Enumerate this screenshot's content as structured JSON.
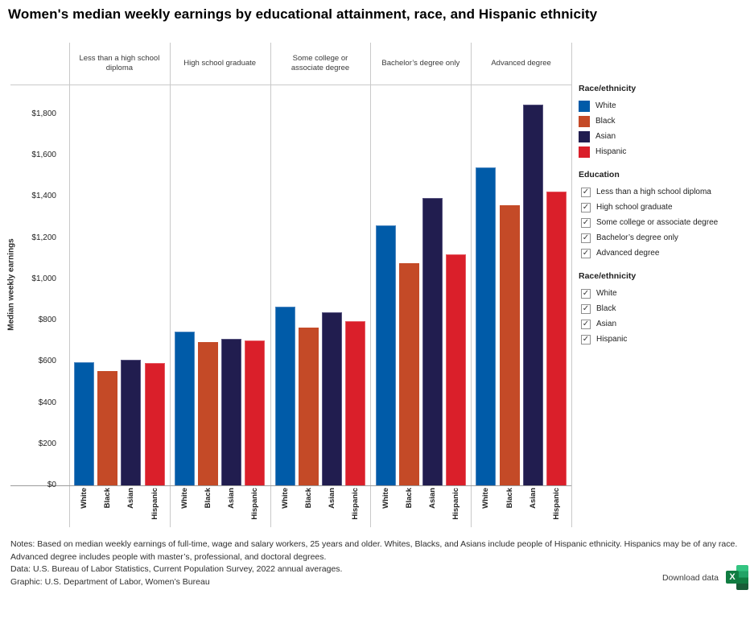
{
  "title": "Women's median weekly earnings by educational attainment, race, and Hispanic ethnicity",
  "chart_data": {
    "type": "bar",
    "title": "Women's median weekly earnings by educational attainment, race, and Hispanic ethnicity",
    "xlabel": "",
    "ylabel": "Median weekly earnings",
    "ylim": [
      0,
      1940
    ],
    "grid": false,
    "legend_position": "right",
    "group_categories": [
      "Less than a high school diploma",
      "High school graduate",
      "Some college or associate degree",
      "Bachelor’s degree only",
      "Advanced degree"
    ],
    "bar_categories": [
      "White",
      "Black",
      "Asian",
      "Hispanic"
    ],
    "series": [
      {
        "name": "White",
        "color": "#005ba8",
        "border": "#4d87c0",
        "values": [
          597,
          745,
          866,
          1262,
          1543
        ]
      },
      {
        "name": "Black",
        "color": "#c44a27",
        "border": "#d3encode",
        "values": [
          555,
          696,
          765,
          1076,
          1358
        ]
      },
      {
        "name": "Asian",
        "color": "#211d4f",
        "border": "#56527e",
        "values": [
          608,
          712,
          838,
          1392,
          1846
        ]
      },
      {
        "name": "Hispanic",
        "color": "#da1f2a",
        "border": "#e55a62",
        "values": [
          592,
          704,
          797,
          1121,
          1424
        ]
      }
    ],
    "yticks": [
      {
        "value": 0,
        "label": "$0"
      },
      {
        "value": 200,
        "label": "$200"
      },
      {
        "value": 400,
        "label": "$400"
      },
      {
        "value": 600,
        "label": "$600"
      },
      {
        "value": 800,
        "label": "$800"
      },
      {
        "value": 1000,
        "label": "$1,000"
      },
      {
        "value": 1200,
        "label": "$1,200"
      },
      {
        "value": 1400,
        "label": "$1,400"
      },
      {
        "value": 1600,
        "label": "$1,600"
      },
      {
        "value": 1800,
        "label": "$1,800"
      }
    ]
  },
  "legend": {
    "race_title": "Race/ethnicity",
    "race_items": [
      {
        "label": "White",
        "color": "#005ba8"
      },
      {
        "label": "Black",
        "color": "#c44a27"
      },
      {
        "label": "Asian",
        "color": "#211d4f"
      },
      {
        "label": "Hispanic",
        "color": "#da1f2a"
      }
    ],
    "education_title": "Education",
    "education_filters": [
      {
        "label": "Less than a high school diploma",
        "checked": true
      },
      {
        "label": "High school graduate",
        "checked": true
      },
      {
        "label": "Some college or associate degree",
        "checked": true
      },
      {
        "label": "Bachelor’s degree only",
        "checked": true
      },
      {
        "label": "Advanced degree",
        "checked": true
      }
    ],
    "race_filter_title": "Race/ethnicity",
    "race_filters": [
      {
        "label": "White",
        "checked": true
      },
      {
        "label": "Black",
        "checked": true
      },
      {
        "label": "Asian",
        "checked": true
      },
      {
        "label": "Hispanic",
        "checked": true
      }
    ],
    "checkmark": "✓"
  },
  "footer": {
    "notes_line1": "Notes: Based on median weekly earnings of full-time, wage and salary workers, 25 years and older. Whites, Blacks, and Asians include people of Hispanic ethnicity. Hispanics may be of any race.",
    "notes_line2": "Advanced degree includes people with master’s, professional, and doctoral degrees.",
    "data_line": "Data: U.S. Bureau of Labor Statistics, Current Population Survey, 2022 annual averages.",
    "graphic_line": "Graphic: U.S. Department of Labor, Women’s Bureau",
    "download_label": "Download data",
    "excel_icon_letter": "X"
  }
}
